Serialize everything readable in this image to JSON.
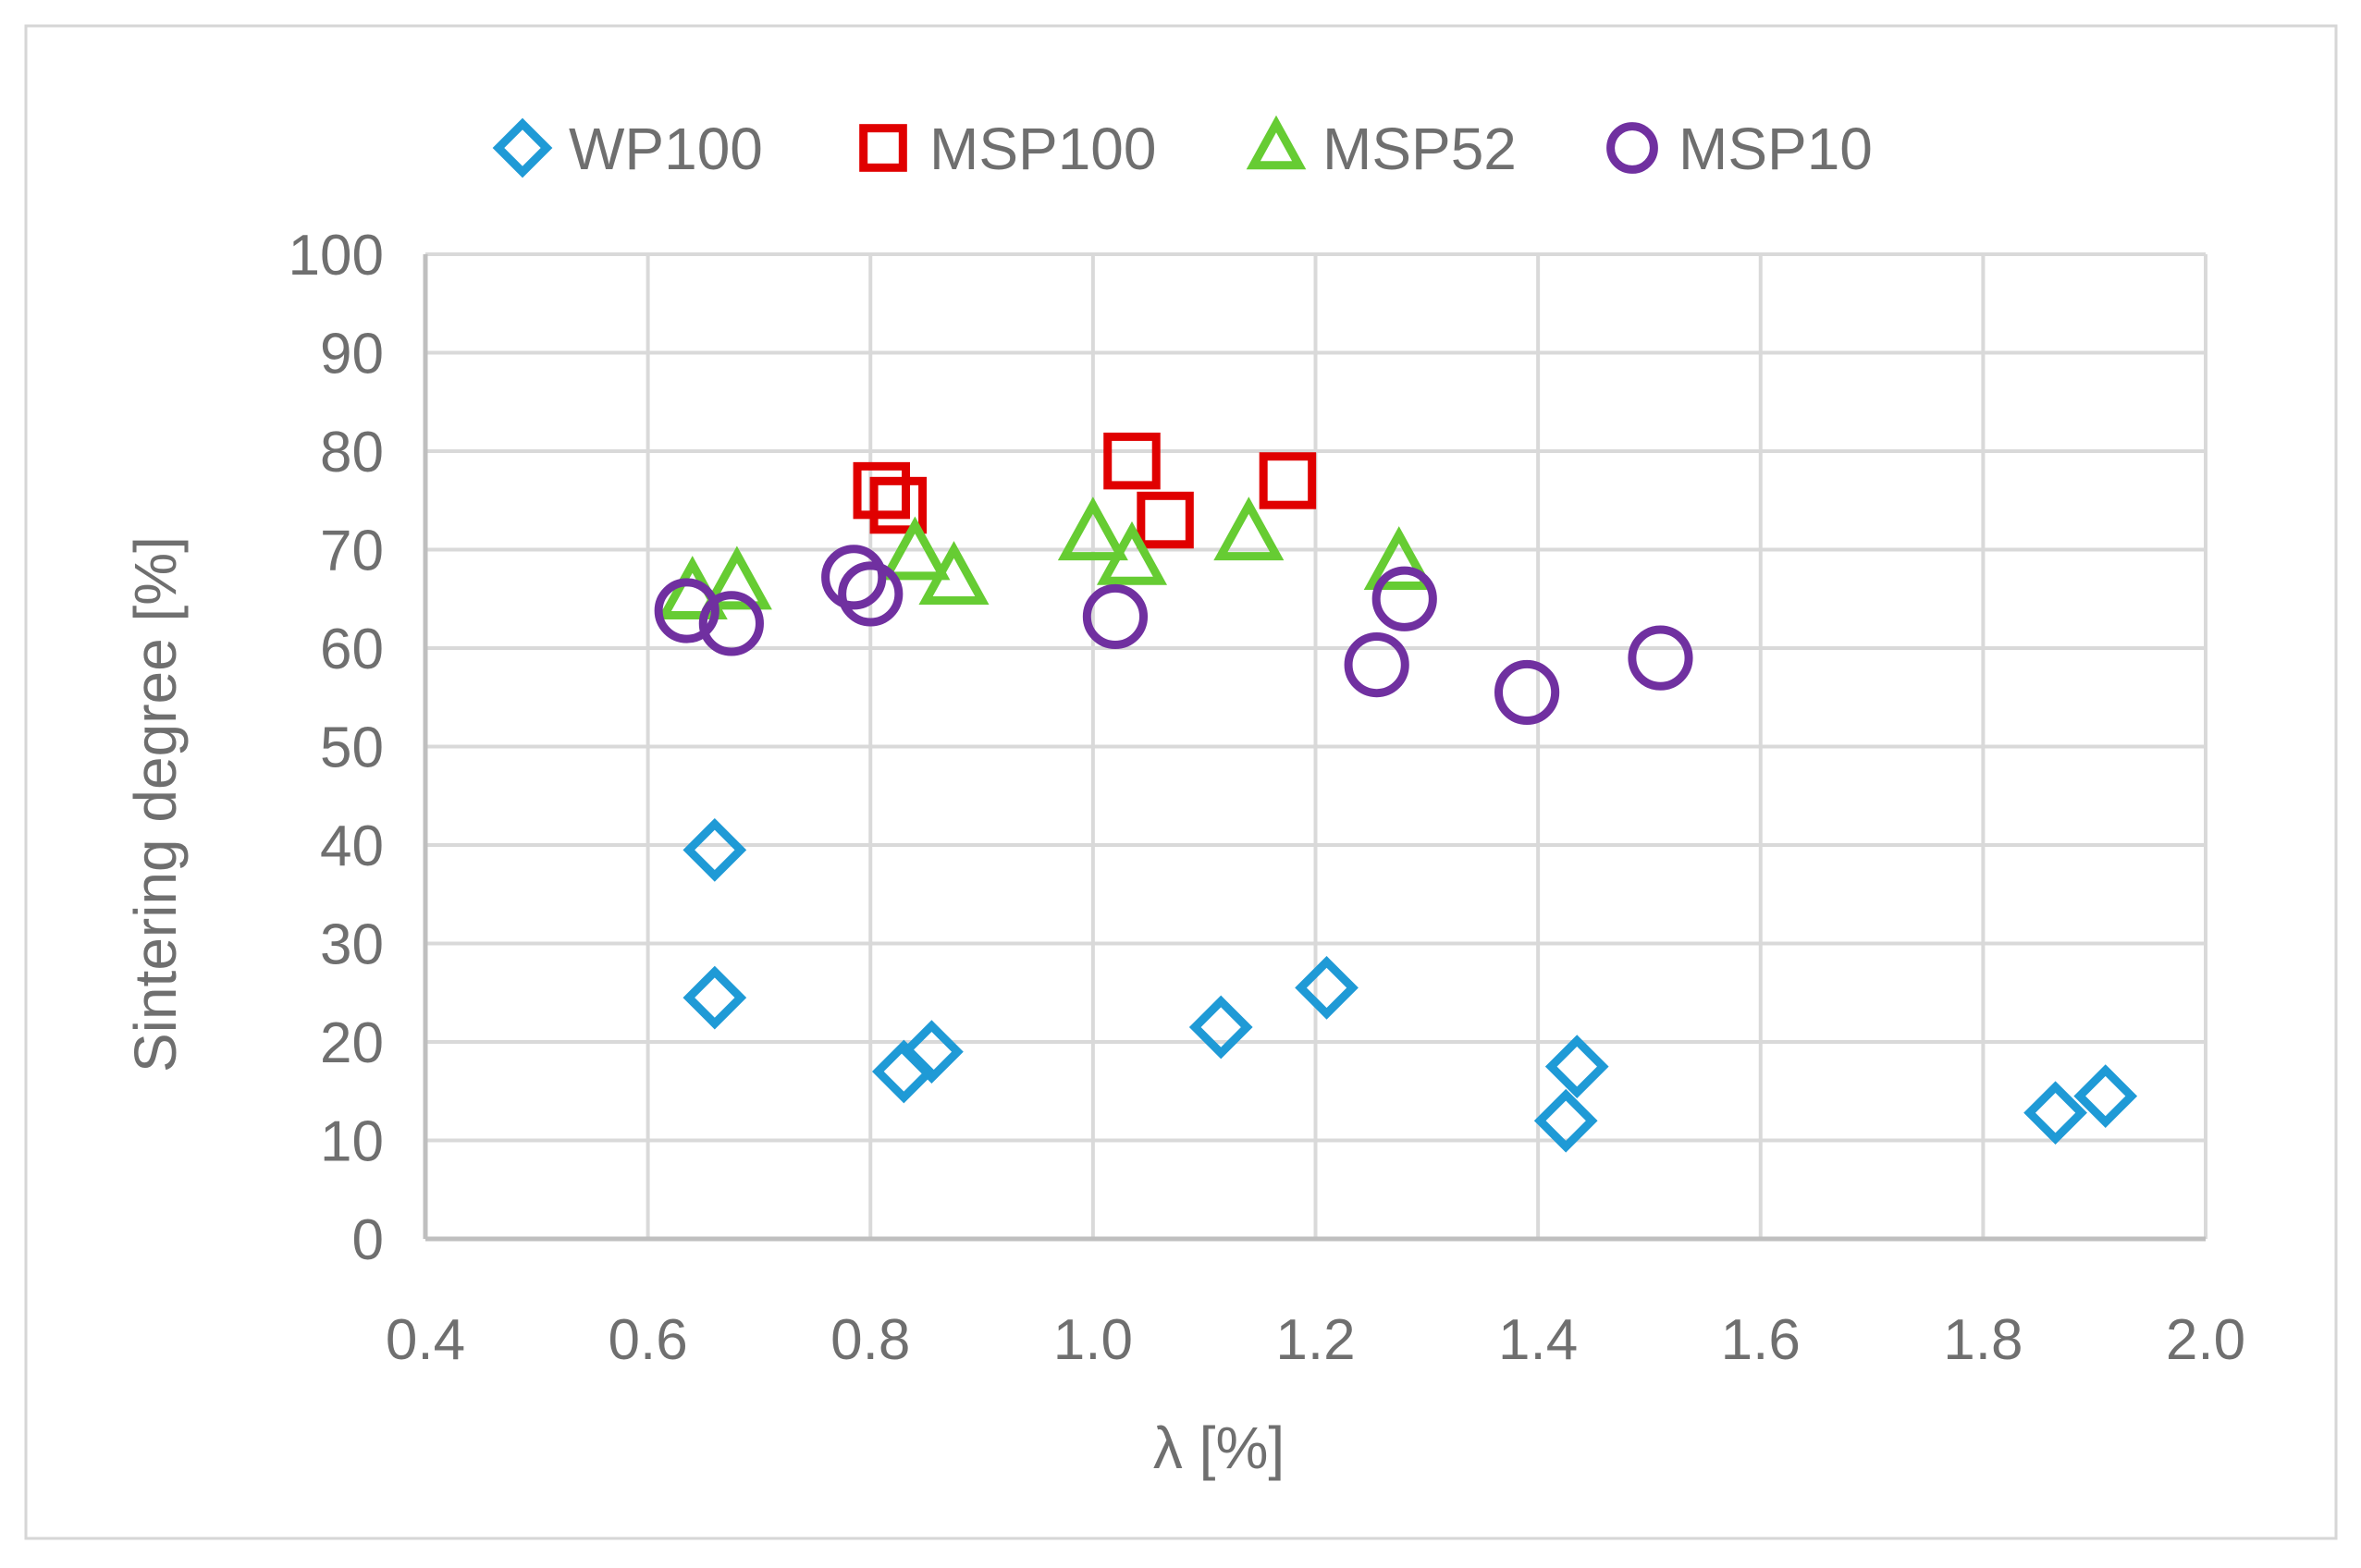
{
  "chart_data": {
    "type": "scatter",
    "title": "",
    "xlabel": "λ [%]",
    "ylabel": "Sintering degree  [%]",
    "xlim": [
      0.4,
      2.0
    ],
    "ylim": [
      0,
      100
    ],
    "x_ticks": [
      0.4,
      0.6,
      0.8,
      1.0,
      1.2,
      1.4,
      1.6,
      1.8,
      2.0
    ],
    "x_tick_labels": [
      "0.4",
      "0.6",
      "0.8",
      "1.0",
      "1.2",
      "1.4",
      "1.6",
      "1.8",
      "2.0"
    ],
    "y_ticks": [
      0,
      10,
      20,
      30,
      40,
      50,
      60,
      70,
      80,
      90,
      100
    ],
    "y_tick_labels": [
      "0",
      "10",
      "20",
      "30",
      "40",
      "50",
      "60",
      "70",
      "80",
      "90",
      "100"
    ],
    "grid": true,
    "legend_position": "top",
    "series": [
      {
        "name": "WP100",
        "marker": "diamond",
        "color": "#1f9ad6",
        "points": [
          [
            0.66,
            39.5
          ],
          [
            0.66,
            24.5
          ],
          [
            0.83,
            17
          ],
          [
            0.855,
            19
          ],
          [
            1.115,
            21.5
          ],
          [
            1.21,
            25.5
          ],
          [
            1.425,
            12
          ],
          [
            1.435,
            17.5
          ],
          [
            1.865,
            12.8
          ],
          [
            1.91,
            14.5
          ]
        ]
      },
      {
        "name": "MSP100",
        "marker": "square",
        "color": "#e00000",
        "points": [
          [
            0.81,
            76
          ],
          [
            0.825,
            74.5
          ],
          [
            1.035,
            79
          ],
          [
            1.065,
            73
          ],
          [
            1.175,
            77
          ]
        ]
      },
      {
        "name": "MSP52",
        "marker": "triangle",
        "color": "#66cc33",
        "points": [
          [
            0.64,
            65.5
          ],
          [
            0.68,
            66.5
          ],
          [
            0.84,
            69.5
          ],
          [
            0.875,
            67
          ],
          [
            1.0,
            71.5
          ],
          [
            1.035,
            69
          ],
          [
            1.14,
            71.5
          ],
          [
            1.275,
            68.5
          ]
        ]
      },
      {
        "name": "MSP10",
        "marker": "circle",
        "color": "#7030a0",
        "points": [
          [
            0.635,
            63.8
          ],
          [
            0.675,
            62.5
          ],
          [
            0.785,
            67.2
          ],
          [
            0.8,
            65.5
          ],
          [
            1.02,
            63.2
          ],
          [
            1.255,
            58.3
          ],
          [
            1.28,
            65
          ],
          [
            1.39,
            55.5
          ],
          [
            1.51,
            59
          ]
        ]
      }
    ]
  }
}
